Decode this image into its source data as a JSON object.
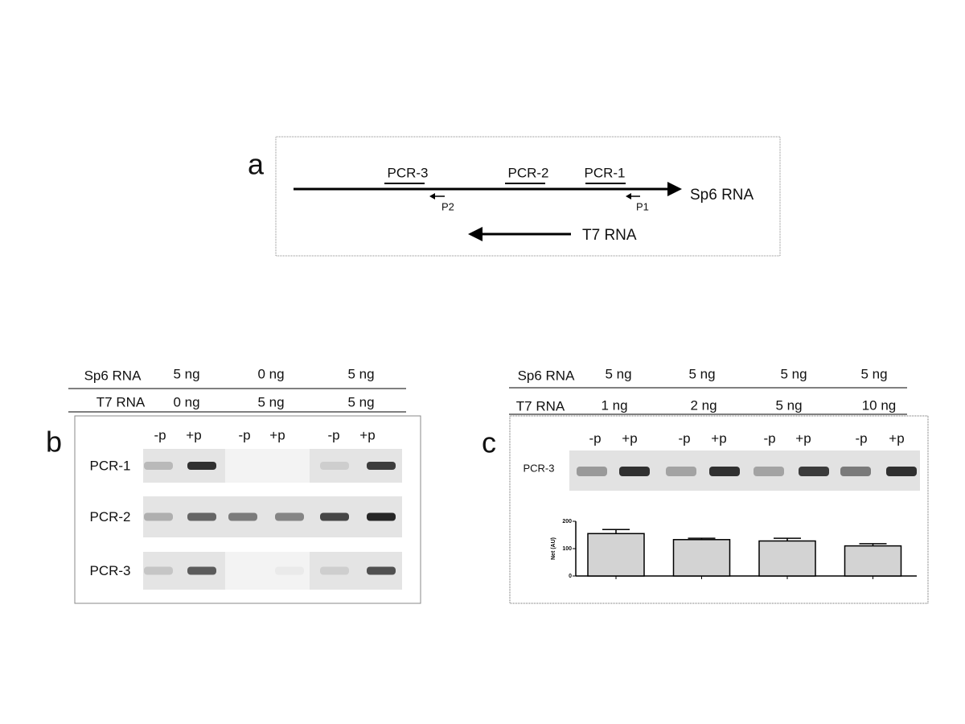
{
  "panel_a": {
    "label": "a",
    "regions": [
      "PCR-3",
      "PCR-2",
      "PCR-1"
    ],
    "primers": [
      "P2",
      "P1"
    ],
    "sp6": "Sp6 RNA",
    "t7": "T7 RNA"
  },
  "panel_b": {
    "label": "b",
    "row_headers": [
      "Sp6 RNA",
      "T7 RNA"
    ],
    "sp6_amounts": [
      "5 ng",
      "0 ng",
      "5 ng"
    ],
    "t7_amounts": [
      "0 ng",
      "5 ng",
      "5 ng"
    ],
    "lanes": [
      "-p",
      "+p",
      "-p",
      "+p",
      "-p",
      "+p"
    ],
    "rows": [
      "PCR-1",
      "PCR-2",
      "PCR-3"
    ]
  },
  "panel_c": {
    "label": "c",
    "row_headers": [
      "Sp6 RNA",
      "T7 RNA"
    ],
    "sp6_amounts": [
      "5 ng",
      "5 ng",
      "5 ng",
      "5 ng"
    ],
    "t7_amounts": [
      "1 ng",
      "2 ng",
      "5 ng",
      "10 ng"
    ],
    "lanes": [
      "-p",
      "+p",
      "-p",
      "+p",
      "-p",
      "+p",
      "-p",
      "+p"
    ],
    "row": "PCR-3",
    "chart": {
      "type": "bar",
      "y_label": "Net (AU)",
      "values": [
        155,
        133,
        128,
        110
      ],
      "errors": [
        15,
        5,
        10,
        8
      ],
      "ylim": [
        0,
        200
      ],
      "yticks": [
        0,
        100,
        200
      ],
      "color": "#d3d3d3"
    }
  }
}
